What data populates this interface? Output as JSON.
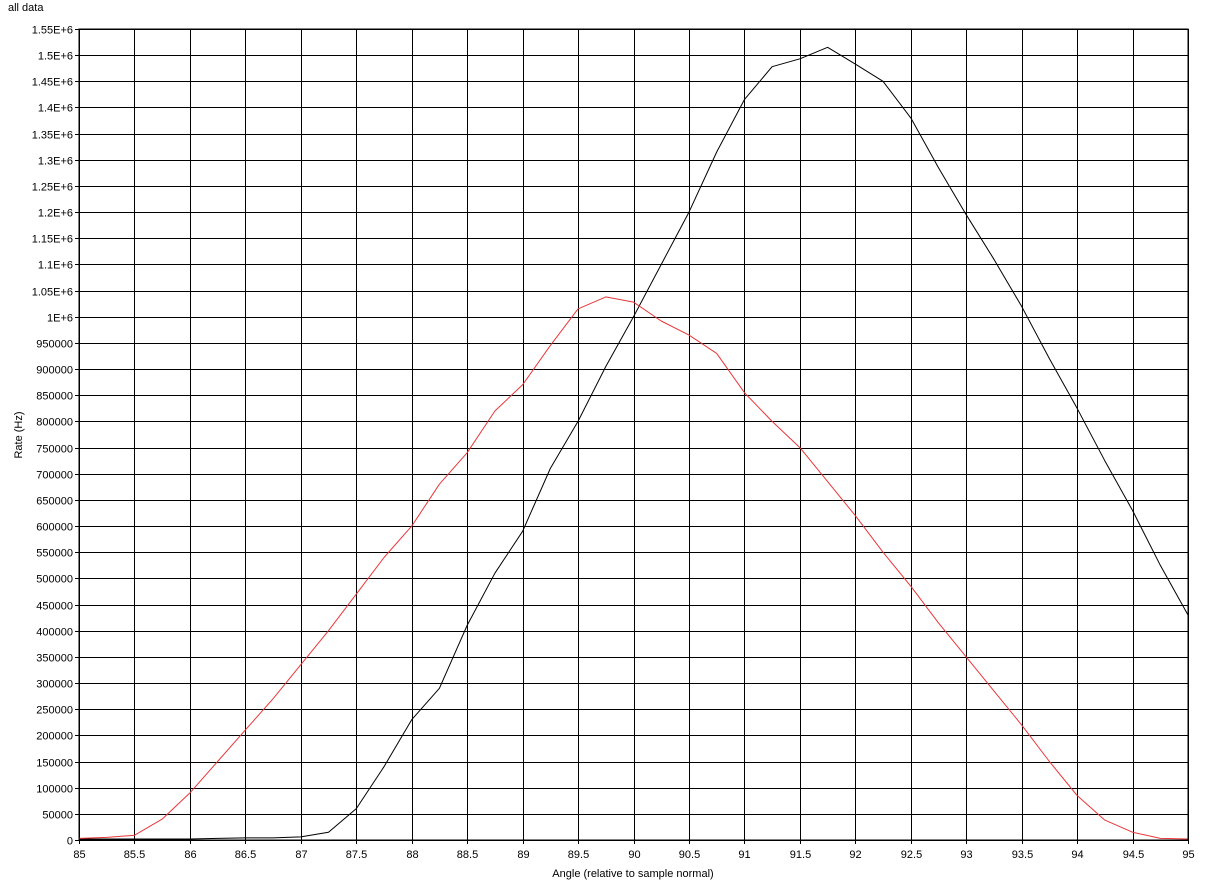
{
  "chart_data": {
    "type": "line",
    "title": "all data",
    "xlabel": "Angle (relative to sample normal)",
    "ylabel": "Rate (Hz)",
    "xlim": [
      85,
      95
    ],
    "ylim": [
      0,
      1550000
    ],
    "grid": true,
    "x_ticks": [
      "85",
      "85.5",
      "86",
      "86.5",
      "87",
      "87.5",
      "88",
      "88.5",
      "89",
      "89.5",
      "90",
      "90.5",
      "91",
      "91.5",
      "92",
      "92.5",
      "93",
      "93.5",
      "94",
      "94.5",
      "95"
    ],
    "y_ticks": [
      "0",
      "50000",
      "100000",
      "150000",
      "200000",
      "250000",
      "300000",
      "350000",
      "400000",
      "450000",
      "500000",
      "550000",
      "600000",
      "650000",
      "700000",
      "750000",
      "800000",
      "850000",
      "900000",
      "950000",
      "1E+6",
      "1.05E+6",
      "1.1E+6",
      "1.15E+6",
      "1.2E+6",
      "1.25E+6",
      "1.3E+6",
      "1.35E+6",
      "1.4E+6",
      "1.45E+6",
      "1.5E+6",
      "1.55E+6"
    ],
    "series": [
      {
        "color": "#000000",
        "points": [
          [
            85,
            2000
          ],
          [
            85.25,
            2000
          ],
          [
            85.5,
            2000
          ],
          [
            85.75,
            2000
          ],
          [
            86,
            2000
          ],
          [
            86.25,
            3000
          ],
          [
            86.5,
            4000
          ],
          [
            86.75,
            4000
          ],
          [
            87,
            6000
          ],
          [
            87.25,
            15000
          ],
          [
            87.5,
            60000
          ],
          [
            87.75,
            140000
          ],
          [
            88,
            230000
          ],
          [
            88.25,
            290000
          ],
          [
            88.5,
            410000
          ],
          [
            88.75,
            510000
          ],
          [
            89,
            590000
          ],
          [
            89.25,
            710000
          ],
          [
            89.5,
            800000
          ],
          [
            89.75,
            905000
          ],
          [
            90,
            1000000
          ],
          [
            90.25,
            1100000
          ],
          [
            90.5,
            1200000
          ],
          [
            90.75,
            1315000
          ],
          [
            91,
            1415000
          ],
          [
            91.25,
            1478000
          ],
          [
            91.5,
            1493000
          ],
          [
            91.75,
            1515000
          ],
          [
            92,
            1483000
          ],
          [
            92.25,
            1450000
          ],
          [
            92.5,
            1380000
          ],
          [
            92.75,
            1285000
          ],
          [
            93,
            1195000
          ],
          [
            93.25,
            1110000
          ],
          [
            93.5,
            1020000
          ],
          [
            93.75,
            920000
          ],
          [
            94,
            825000
          ],
          [
            94.25,
            725000
          ],
          [
            94.5,
            630000
          ],
          [
            94.75,
            525000
          ],
          [
            95,
            430000
          ]
        ]
      },
      {
        "color": "#e8373a",
        "points": [
          [
            85,
            3000
          ],
          [
            85.25,
            5000
          ],
          [
            85.5,
            9000
          ],
          [
            85.75,
            40000
          ],
          [
            86,
            90000
          ],
          [
            86.25,
            150000
          ],
          [
            86.5,
            210000
          ],
          [
            86.75,
            270000
          ],
          [
            87,
            335000
          ],
          [
            87.25,
            400000
          ],
          [
            87.5,
            470000
          ],
          [
            87.75,
            540000
          ],
          [
            88,
            600000
          ],
          [
            88.25,
            680000
          ],
          [
            88.5,
            740000
          ],
          [
            88.75,
            820000
          ],
          [
            89,
            870000
          ],
          [
            89.25,
            945000
          ],
          [
            89.5,
            1015000
          ],
          [
            89.75,
            1038000
          ],
          [
            90,
            1028000
          ],
          [
            90.25,
            992000
          ],
          [
            90.5,
            965000
          ],
          [
            90.75,
            930000
          ],
          [
            91,
            855000
          ],
          [
            91.25,
            800000
          ],
          [
            91.5,
            750000
          ],
          [
            91.75,
            685000
          ],
          [
            92,
            620000
          ],
          [
            92.25,
            550000
          ],
          [
            92.5,
            485000
          ],
          [
            92.75,
            415000
          ],
          [
            93,
            350000
          ],
          [
            93.25,
            285000
          ],
          [
            93.5,
            220000
          ],
          [
            93.75,
            150000
          ],
          [
            94,
            85000
          ],
          [
            94.25,
            38000
          ],
          [
            94.5,
            15000
          ],
          [
            94.75,
            3000
          ],
          [
            95,
            2000
          ]
        ]
      }
    ]
  }
}
